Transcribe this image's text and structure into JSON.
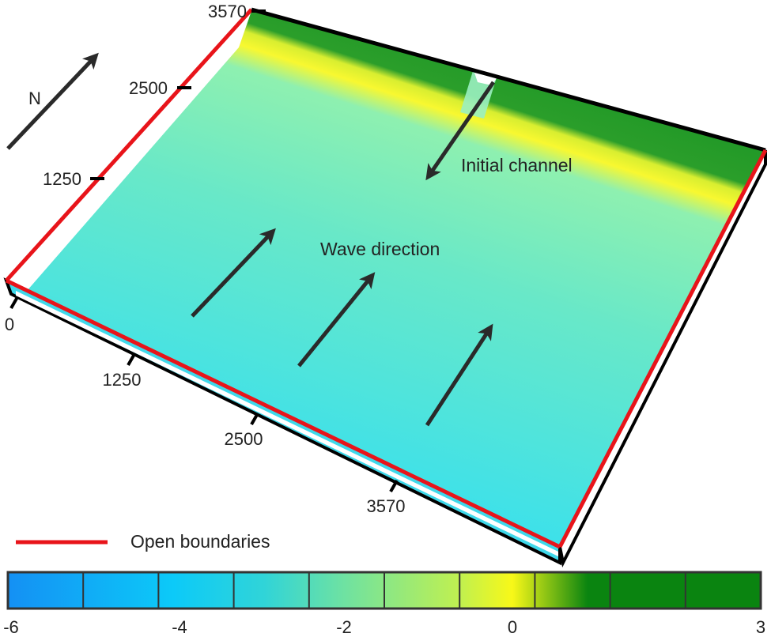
{
  "y_axis_ticks": [
    "3570",
    "2500",
    "1250",
    "0"
  ],
  "x_axis_ticks": [
    "1250",
    "2500",
    "3570"
  ],
  "north_label": "N",
  "annotations": {
    "initial_channel": "Initial channel",
    "wave_direction": "Wave direction"
  },
  "legend": {
    "open_boundaries": "Open boundaries",
    "open_boundary_color": "#e8141a"
  },
  "colorbar": {
    "min": -6,
    "max": 3,
    "tick_labels": [
      "-6",
      "-4",
      "-2",
      "0",
      "3"
    ],
    "colors": [
      "#1490f0",
      "#0cc8f8",
      "#20d8e8",
      "#40d8c0",
      "#70e0a0",
      "#a8ee70",
      "#e8f040",
      "#f8f820",
      "#0a8a10",
      "#0a8410"
    ]
  }
}
